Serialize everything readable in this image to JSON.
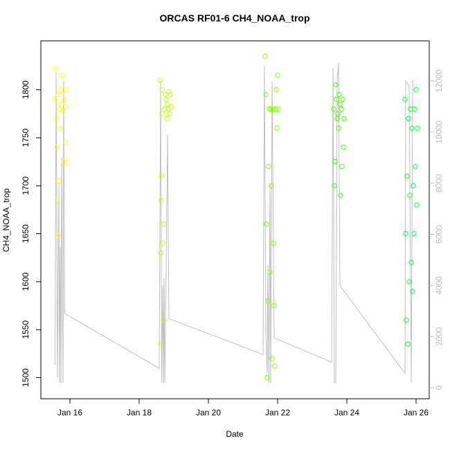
{
  "chart_data": {
    "type": "scatter",
    "title": "ORCAS RF01-6 CH4_NOAA_trop",
    "x_label": "Date",
    "y_label": "CH4_NOAA_trop",
    "xlim": [
      15.16,
      26.38
    ],
    "xticks": [
      {
        "value": 16,
        "label": "Jan 16"
      },
      {
        "value": 18,
        "label": "Jan 18"
      },
      {
        "value": 20,
        "label": "Jan 20"
      },
      {
        "value": 22,
        "label": "Jan 22"
      },
      {
        "value": 24,
        "label": "Jan 24"
      },
      {
        "value": 26,
        "label": "Jan 26"
      }
    ],
    "ylim": [
      1478,
      1851
    ],
    "yticks": [
      1500,
      1550,
      1600,
      1650,
      1700,
      1750,
      1800
    ],
    "y2lim": [
      -433,
      13571
    ],
    "y2ticks": [
      0,
      2000,
      4000,
      6000,
      8000,
      10000,
      12000
    ],
    "series": [
      {
        "type": "line",
        "axis": "y2",
        "color": "#bebebe",
        "x": [
          15.57,
          15.6,
          15.64,
          15.68,
          15.7,
          15.72,
          15.74,
          15.76,
          15.8,
          15.82,
          15.85,
          18.58,
          18.62,
          18.65,
          18.68,
          18.7,
          18.72,
          18.74,
          18.78,
          18.82,
          18.86,
          21.58,
          21.62,
          21.66,
          21.7,
          21.72,
          21.75,
          21.78,
          21.8,
          21.84,
          21.9,
          23.56,
          23.6,
          23.64,
          23.68,
          23.72,
          23.76,
          23.8,
          25.68,
          25.7,
          25.8,
          25.86,
          25.9,
          25.92
        ],
        "values": [
          890,
          12300,
          400,
          8000,
          190,
          5500,
          190,
          9000,
          190,
          12000,
          2900,
          760,
          12000,
          190,
          4000,
          190,
          4300,
          190,
          4400,
          9900,
          2700,
          1300,
          12600,
          2000,
          600,
          4800,
          190,
          8000,
          190,
          12000,
          1950,
          1000,
          12500,
          190,
          190,
          12000,
          12700,
          4000,
          560,
          12000,
          11800,
          190,
          12000,
          12000
        ]
      },
      {
        "color": "#ffff00",
        "x": [
          15.56,
          15.58,
          15.6,
          15.62,
          15.63,
          15.65,
          15.66,
          15.68,
          15.7,
          15.72,
          15.74,
          15.76,
          15.78,
          15.8,
          15.82,
          15.84,
          15.86,
          15.88,
          15.9,
          15.92
        ],
        "values": [
          1790,
          1822,
          1770,
          1740,
          1685,
          1648,
          1795,
          1705,
          1780,
          1760,
          1800,
          1785,
          1815,
          1778,
          1725,
          1790,
          1782,
          1745,
          1800,
          1724
        ]
      },
      {
        "color": "#c0ff00",
        "x": [
          18.6,
          18.62,
          18.63,
          18.64,
          18.65,
          18.66,
          18.67,
          18.68,
          18.7,
          18.72,
          18.74,
          18.76,
          18.78,
          18.8,
          18.82,
          18.84,
          18.86,
          18.88,
          18.9,
          18.93
        ],
        "values": [
          1810,
          1535,
          1630,
          1685,
          1710,
          1775,
          1800,
          1640,
          1660,
          1560,
          1780,
          1795,
          1790,
          1770,
          1785,
          1780,
          1798,
          1775,
          1795,
          1782
        ]
      },
      {
        "color": "#80ff00",
        "x": [
          21.64,
          21.66,
          21.68,
          21.7,
          21.72,
          21.74,
          21.76,
          21.78,
          21.8,
          21.82,
          21.84,
          21.86,
          21.88,
          21.9,
          21.92,
          21.94,
          21.96,
          21.98,
          22.0,
          22.02
        ],
        "values": [
          1835,
          1795,
          1660,
          1500,
          1580,
          1720,
          1780,
          1610,
          1780,
          1700,
          1520,
          1780,
          1640,
          1575,
          1512,
          1780,
          1800,
          1760,
          1815,
          1780
        ]
      },
      {
        "color": "#40ff00",
        "x": [
          23.62,
          23.64,
          23.66,
          23.68,
          23.7,
          23.72,
          23.74,
          23.76,
          23.78,
          23.8,
          23.82,
          23.84,
          23.86,
          23.88,
          23.9,
          23.92
        ],
        "values": [
          1780,
          1700,
          1725,
          1805,
          1790,
          1770,
          1775,
          1760,
          1795,
          1785,
          1690,
          1780,
          1720,
          1790,
          1740,
          1770
        ]
      },
      {
        "color": "#00ff40",
        "x": [
          25.68,
          25.7,
          25.72,
          25.74,
          25.76,
          25.78,
          25.8,
          25.82,
          25.84,
          25.86,
          25.88,
          25.9,
          25.92,
          25.94,
          25.96,
          25.98,
          26.0,
          26.02,
          26.04
        ],
        "values": [
          1790,
          1650,
          1560,
          1710,
          1535,
          1770,
          1600,
          1690,
          1780,
          1620,
          1760,
          1590,
          1700,
          1650,
          1780,
          1720,
          1800,
          1680,
          1760
        ]
      }
    ]
  }
}
